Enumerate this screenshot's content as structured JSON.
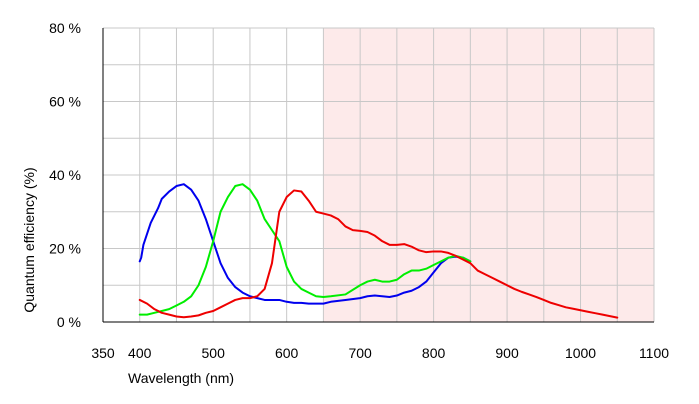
{
  "chart_data": {
    "type": "line",
    "title": "",
    "xlabel": "Wavelength (nm)",
    "ylabel": "Quantum efficiency (%)",
    "xlim": [
      350,
      1100
    ],
    "ylim": [
      0,
      80
    ],
    "x_ticks": [
      350,
      400,
      500,
      600,
      700,
      800,
      900,
      1000,
      1100
    ],
    "x_tick_labels": [
      "350",
      "400",
      "500",
      "600",
      "700",
      "800",
      "900",
      "1000",
      "1100"
    ],
    "y_ticks": [
      0,
      20,
      40,
      60,
      80
    ],
    "y_tick_labels": [
      "0 %",
      "20 %",
      "40 %",
      "60 %",
      "80 %"
    ],
    "grid": true,
    "shaded_region": {
      "x_start": 650,
      "x_end": 1100,
      "color": "#fdeaea"
    },
    "legend": "none",
    "series": [
      {
        "color": "#0000ee",
        "points": [
          [
            400,
            16.5
          ],
          [
            402,
            17.5
          ],
          [
            405,
            21
          ],
          [
            410,
            24
          ],
          [
            415,
            27
          ],
          [
            420,
            29
          ],
          [
            425,
            31
          ],
          [
            430,
            33.5
          ],
          [
            440,
            35.5
          ],
          [
            450,
            37
          ],
          [
            460,
            37.5
          ],
          [
            470,
            36
          ],
          [
            480,
            33
          ],
          [
            490,
            28
          ],
          [
            500,
            22
          ],
          [
            510,
            16
          ],
          [
            520,
            12
          ],
          [
            530,
            9.5
          ],
          [
            540,
            8
          ],
          [
            550,
            7
          ],
          [
            560,
            6.5
          ],
          [
            570,
            6
          ],
          [
            580,
            6
          ],
          [
            590,
            6
          ],
          [
            600,
            5.5
          ],
          [
            610,
            5.2
          ],
          [
            620,
            5.2
          ],
          [
            630,
            5
          ],
          [
            640,
            5
          ],
          [
            650,
            5
          ],
          [
            660,
            5.5
          ],
          [
            680,
            6
          ],
          [
            700,
            6.5
          ],
          [
            710,
            7
          ],
          [
            720,
            7.2
          ],
          [
            730,
            7
          ],
          [
            740,
            6.8
          ],
          [
            750,
            7.2
          ],
          [
            760,
            8
          ],
          [
            770,
            8.5
          ],
          [
            780,
            9.5
          ],
          [
            790,
            11
          ],
          [
            800,
            13.5
          ],
          [
            810,
            16
          ],
          [
            820,
            17.5
          ],
          [
            830,
            17.8
          ],
          [
            840,
            17.5
          ],
          [
            850,
            16.5
          ]
        ]
      },
      {
        "color": "#00ee00",
        "points": [
          [
            400,
            2
          ],
          [
            410,
            2
          ],
          [
            420,
            2.5
          ],
          [
            430,
            3
          ],
          [
            440,
            3.5
          ],
          [
            450,
            4.5
          ],
          [
            460,
            5.5
          ],
          [
            470,
            7
          ],
          [
            480,
            10
          ],
          [
            490,
            15
          ],
          [
            500,
            22
          ],
          [
            510,
            30
          ],
          [
            520,
            34
          ],
          [
            530,
            37
          ],
          [
            540,
            37.5
          ],
          [
            550,
            36
          ],
          [
            560,
            33
          ],
          [
            570,
            28
          ],
          [
            580,
            25
          ],
          [
            590,
            22
          ],
          [
            600,
            15
          ],
          [
            610,
            11
          ],
          [
            620,
            9
          ],
          [
            630,
            8
          ],
          [
            640,
            7
          ],
          [
            650,
            6.8
          ],
          [
            660,
            7
          ],
          [
            680,
            7.5
          ],
          [
            700,
            10
          ],
          [
            710,
            11
          ],
          [
            720,
            11.5
          ],
          [
            730,
            11
          ],
          [
            740,
            11
          ],
          [
            750,
            11.5
          ],
          [
            760,
            13
          ],
          [
            770,
            14
          ],
          [
            780,
            14
          ],
          [
            790,
            14.5
          ],
          [
            800,
            15.5
          ],
          [
            810,
            16.5
          ],
          [
            820,
            17.5
          ],
          [
            830,
            18
          ],
          [
            840,
            17.5
          ],
          [
            850,
            16.5
          ]
        ]
      },
      {
        "color": "#ee0000",
        "points": [
          [
            400,
            6
          ],
          [
            410,
            5
          ],
          [
            420,
            3.5
          ],
          [
            430,
            2.5
          ],
          [
            440,
            2
          ],
          [
            450,
            1.5
          ],
          [
            460,
            1.3
          ],
          [
            470,
            1.5
          ],
          [
            480,
            1.8
          ],
          [
            490,
            2.5
          ],
          [
            500,
            3
          ],
          [
            510,
            4
          ],
          [
            520,
            5
          ],
          [
            530,
            6
          ],
          [
            540,
            6.5
          ],
          [
            550,
            6.5
          ],
          [
            560,
            7
          ],
          [
            570,
            9
          ],
          [
            580,
            16
          ],
          [
            590,
            30
          ],
          [
            600,
            34
          ],
          [
            610,
            35.8
          ],
          [
            620,
            35.5
          ],
          [
            630,
            33
          ],
          [
            640,
            30
          ],
          [
            650,
            29.5
          ],
          [
            660,
            29
          ],
          [
            670,
            28
          ],
          [
            680,
            26
          ],
          [
            690,
            25
          ],
          [
            700,
            24.8
          ],
          [
            710,
            24.5
          ],
          [
            720,
            23.5
          ],
          [
            730,
            22
          ],
          [
            740,
            21
          ],
          [
            750,
            21
          ],
          [
            760,
            21.2
          ],
          [
            770,
            20.5
          ],
          [
            780,
            19.5
          ],
          [
            790,
            19
          ],
          [
            800,
            19.2
          ],
          [
            810,
            19.2
          ],
          [
            820,
            18.8
          ],
          [
            830,
            18
          ],
          [
            840,
            17
          ],
          [
            850,
            16
          ],
          [
            860,
            14
          ],
          [
            870,
            13
          ],
          [
            880,
            12
          ],
          [
            890,
            11
          ],
          [
            900,
            10
          ],
          [
            910,
            9
          ],
          [
            920,
            8.2
          ],
          [
            930,
            7.5
          ],
          [
            940,
            6.8
          ],
          [
            950,
            6
          ],
          [
            960,
            5.2
          ],
          [
            970,
            4.6
          ],
          [
            980,
            4
          ],
          [
            990,
            3.6
          ],
          [
            1000,
            3.2
          ],
          [
            1010,
            2.8
          ],
          [
            1020,
            2.4
          ],
          [
            1030,
            2
          ],
          [
            1040,
            1.6
          ],
          [
            1050,
            1.2
          ]
        ]
      }
    ]
  }
}
